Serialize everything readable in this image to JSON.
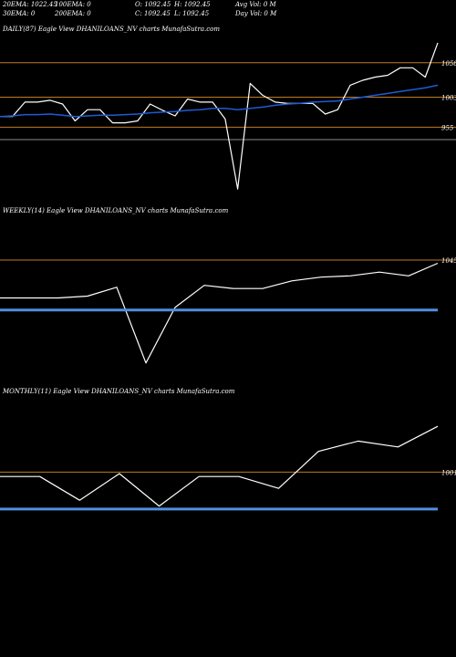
{
  "header": {
    "ema20": "20EMA: 1022.45",
    "ema100": "100EMA: 0",
    "open": "O: 1092.45",
    "high": "H: 1092.45",
    "avgvol": "Avg Vol: 0  M",
    "ema30": "30EMA: 0",
    "ema200": "200EMA: 0",
    "close": "C: 1092.45",
    "low": "L: 1092.45",
    "dayvol": "Day Vol: 0  M"
  },
  "colors": {
    "background": "#000000",
    "price_line": "#ffffff",
    "ema_line": "#1e5bd6",
    "level_line": "#c07a1e",
    "gray_line": "#8a8a8a",
    "blue_band": "#4f8fe0"
  },
  "chart_data": [
    {
      "type": "line",
      "title": "DAILY(87) Eagle  View  DHANILOANS_NV charts MunafaSutra.com",
      "y_tick_labels": [
        "1058",
        "1003",
        "955"
      ],
      "levels": [
        {
          "value": 1058,
          "kind": "price-level"
        },
        {
          "value": 1003,
          "kind": "price-level"
        },
        {
          "value": 955,
          "kind": "price-level"
        },
        {
          "value": 935,
          "kind": "gray-level"
        }
      ],
      "ylim": [
        830,
        1100
      ],
      "series": [
        {
          "role": "price",
          "values": [
            972,
            972,
            995,
            995,
            998,
            992,
            965,
            983,
            983,
            962,
            962,
            965,
            992,
            982,
            973,
            1000,
            995,
            995,
            968,
            856,
            1025,
            1006,
            995,
            993,
            993,
            993,
            976,
            983,
            1022,
            1030,
            1035,
            1038,
            1050,
            1050,
            1035,
            1090
          ]
        },
        {
          "role": "ema",
          "values": [
            972,
            973,
            975,
            975,
            976,
            974,
            972,
            973,
            974,
            974,
            975,
            976,
            978,
            979,
            980,
            982,
            983,
            985,
            985,
            983,
            985,
            987,
            990,
            992,
            993,
            995,
            996,
            997,
            1000,
            1003,
            1006,
            1009,
            1012,
            1015,
            1018,
            1022
          ]
        }
      ]
    },
    {
      "type": "line",
      "title": "WEEKLY(14) Eagle  View  DHANILOANS_NV charts MunafaSutra.com",
      "y_tick_labels": [
        "1045"
      ],
      "levels": [
        {
          "value": 1045,
          "kind": "price-level"
        }
      ],
      "ylim": [
        850,
        1110
      ],
      "series": [
        {
          "role": "price",
          "values": [
            985,
            985,
            985,
            988,
            1002,
            882,
            970,
            1005,
            1000,
            1000,
            1012,
            1018,
            1020,
            1026,
            1020,
            1040
          ]
        },
        {
          "role": "ema",
          "values": [
            966,
            966,
            966,
            966,
            966,
            966,
            966,
            966,
            966,
            966,
            966,
            966,
            966,
            966,
            966,
            966
          ]
        }
      ]
    },
    {
      "type": "line",
      "title": "MONTHLY(11) Eagle  View  DHANILOANS_NV charts MunafaSutra.com",
      "y_tick_labels": [
        "1001"
      ],
      "levels": [
        {
          "value": 1001,
          "kind": "price-level"
        }
      ],
      "ylim": [
        950,
        1050
      ],
      "series": [
        {
          "role": "price",
          "values": [
            998,
            998,
            982,
            1000,
            978,
            998,
            998,
            990,
            1015,
            1022,
            1018,
            1032
          ]
        },
        {
          "role": "ema",
          "values": [
            976,
            976,
            976,
            976,
            976,
            976,
            976,
            976,
            976,
            976,
            976,
            976
          ]
        }
      ]
    }
  ]
}
